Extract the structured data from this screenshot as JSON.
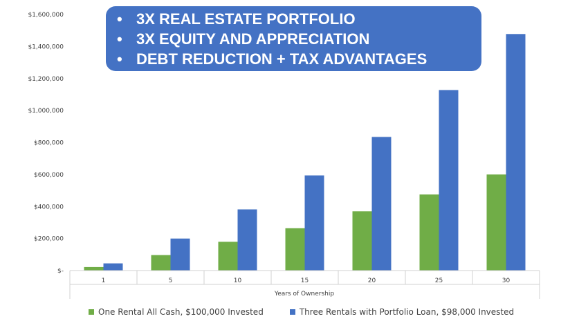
{
  "chart_data": {
    "type": "bar",
    "categories": [
      "1",
      "5",
      "10",
      "15",
      "20",
      "25",
      "30"
    ],
    "series": [
      {
        "name": "One Rental All Cash, $100,000 Invested",
        "color": "#70ad47",
        "values": [
          22000,
          97000,
          180000,
          265000,
          370000,
          476000,
          601000
        ]
      },
      {
        "name": "Three Rentals with Portfolio Loan, $98,000 Invested",
        "color": "#4472c4",
        "values": [
          45000,
          200000,
          382000,
          594000,
          835000,
          1128000,
          1478000
        ]
      }
    ],
    "ylim": [
      0,
      1600000
    ],
    "yticks": [
      {
        "value": 0,
        "label": "$-"
      },
      {
        "value": 200000,
        "label": "$200,000"
      },
      {
        "value": 400000,
        "label": "$400,000"
      },
      {
        "value": 600000,
        "label": "$600,000"
      },
      {
        "value": 800000,
        "label": "$800,000"
      },
      {
        "value": 1000000,
        "label": "$1,000,000"
      },
      {
        "value": 1200000,
        "label": "$1,200,000"
      },
      {
        "value": 1400000,
        "label": "$1,400,000"
      },
      {
        "value": 1600000,
        "label": "$1,600,000"
      }
    ],
    "xlabel": "Years of Ownership",
    "ylabel": "",
    "grid": false,
    "legend": "bottom"
  },
  "banner": {
    "bullet": "•",
    "lines": [
      "3X REAL ESTATE PORTFOLIO",
      "3X  EQUITY AND APPRECIATION",
      "DEBT REDUCTION + TAX ADVANTAGES"
    ]
  }
}
